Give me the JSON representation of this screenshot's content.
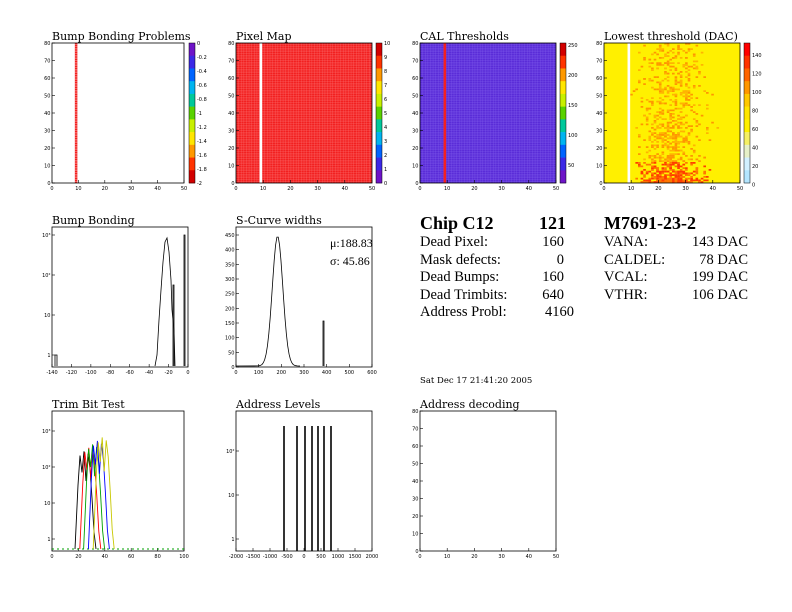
{
  "panel_titles": {
    "bump_problems": "Bump Bonding Problems",
    "pixel_map": "Pixel Map",
    "cal_thresholds": "CAL Thresholds",
    "lowest_threshold": "Lowest threshold (DAC)",
    "bump_bonding": "Bump Bonding",
    "scurve": "S-Curve widths",
    "trim_bit": "Trim Bit Test",
    "address_levels": "Address Levels",
    "address_decoding": "Address decoding"
  },
  "chip": {
    "name": "Chip C12",
    "number": "121",
    "rows": [
      {
        "label": "Dead Pixel:",
        "value": "160"
      },
      {
        "label": "Mask defects:",
        "value": "0"
      },
      {
        "label": "Dead Bumps:",
        "value": "160"
      },
      {
        "label": "Dead Trimbits:",
        "value": "640"
      },
      {
        "label": "Address Probl:",
        "value": "4160"
      }
    ]
  },
  "module": {
    "name": "M7691-23-2",
    "rows": [
      {
        "label": "VANA:",
        "value": "143 DAC"
      },
      {
        "label": "CALDEL:",
        "value": "78 DAC"
      },
      {
        "label": "VCAL:",
        "value": "199 DAC"
      },
      {
        "label": "VTHR:",
        "value": "106 DAC"
      }
    ]
  },
  "timestamp": "Sat Dec 17 21:41:20 2005",
  "scurve_stats": {
    "mu": "μ:188.83",
    "sigma": "σ: 45.86"
  },
  "chart_data": [
    {
      "type": "heatmap",
      "title": "Bump Bonding Problems",
      "xlim": [
        0,
        52
      ],
      "ylim": [
        0,
        80
      ],
      "x_ticks": [
        "0",
        "10",
        "20",
        "30",
        "40",
        "50"
      ],
      "y_ticks": [
        "0",
        "10",
        "20",
        "30",
        "40",
        "50",
        "60",
        "70",
        "80"
      ],
      "z_ticks": [
        "0",
        "-0.2",
        "-0.4",
        "-0.6",
        "-0.8",
        "-1",
        "-1.2",
        "-1.4",
        "-1.6",
        "-1.8",
        "-2"
      ],
      "description_cells": {
        "dead_columns": [
          9
        ]
      },
      "colors": {
        "cell": "#f22020"
      }
    },
    {
      "type": "heatmap",
      "title": "Pixel Map",
      "xlim": [
        0,
        52
      ],
      "ylim": [
        0,
        80
      ],
      "x_ticks": [
        "0",
        "10",
        "20",
        "30",
        "40",
        "50"
      ],
      "y_ticks": [
        "0",
        "10",
        "20",
        "30",
        "40",
        "50",
        "60",
        "70",
        "80"
      ],
      "z_ticks": [
        "0",
        "1",
        "2",
        "3",
        "4",
        "5",
        "6",
        "7",
        "8",
        "9",
        "10"
      ],
      "empty_columns": [
        9
      ],
      "fill_value": 10,
      "colors": {
        "cell": "#f22020"
      }
    },
    {
      "type": "heatmap",
      "title": "CAL Thresholds",
      "xlim": [
        0,
        52
      ],
      "ylim": [
        0,
        80
      ],
      "x_ticks": [
        "0",
        "10",
        "20",
        "30",
        "40",
        "50"
      ],
      "y_ticks": [
        "0",
        "10",
        "20",
        "30",
        "40",
        "50",
        "60",
        "70",
        "80"
      ],
      "z_ticks": [
        "50",
        "100",
        "150",
        "200",
        "250"
      ],
      "high_columns": [
        9
      ],
      "colors": {
        "cell": "#5a2cd8",
        "high": "#f22020"
      }
    },
    {
      "type": "heatmap",
      "title": "Lowest threshold (DAC)",
      "xlim": [
        0,
        52
      ],
      "ylim": [
        0,
        80
      ],
      "x_ticks": [
        "0",
        "10",
        "20",
        "30",
        "40",
        "50"
      ],
      "y_ticks": [
        "0",
        "10",
        "20",
        "30",
        "40",
        "50",
        "60",
        "70",
        "80"
      ],
      "z_ticks": [
        "0",
        "20",
        "40",
        "60",
        "80",
        "100",
        "120",
        "140"
      ],
      "empty_columns": [
        9
      ],
      "colors": {
        "cell": "#fff000"
      }
    },
    {
      "type": "line",
      "title": "Bump Bonding",
      "log_y": true,
      "x_ticks": [
        "-140",
        "-120",
        "-100",
        "-80",
        "-60",
        "-40",
        "-20",
        "0"
      ],
      "y_ticks": [
        "1",
        "10",
        "10²",
        "10³"
      ]
    },
    {
      "type": "line",
      "title": "S-Curve widths",
      "x_ticks": [
        "0",
        "100",
        "200",
        "300",
        "400",
        "500",
        "600"
      ],
      "y_ticks": [
        "0",
        "50",
        "100",
        "150",
        "200",
        "250",
        "300",
        "350",
        "400",
        "450"
      ]
    },
    {
      "type": "line",
      "title": "Trim Bit Test",
      "log_y": true,
      "x_ticks": [
        "0",
        "20",
        "40",
        "60",
        "80",
        "100"
      ],
      "y_ticks": [
        "1",
        "10",
        "10²",
        "10³"
      ],
      "series_colors": [
        "#000000",
        "#ff0000",
        "#00a000",
        "#0000ff",
        "#c8c800"
      ]
    },
    {
      "type": "line",
      "title": "Address Levels",
      "log_y": true,
      "x_ticks": [
        "-2000",
        "-1500",
        "-1000",
        "-500",
        "0",
        "500",
        "1000",
        "1500",
        "2000"
      ],
      "y_ticks": [
        "1",
        "10",
        "10²"
      ]
    },
    {
      "type": "heatmap",
      "title": "Address decoding",
      "xlim": [
        0,
        52
      ],
      "ylim": [
        0,
        80
      ],
      "x_ticks": [
        "0",
        "10",
        "20",
        "30",
        "40",
        "50"
      ],
      "y_ticks": [
        "0",
        "10",
        "20",
        "30",
        "40",
        "50",
        "60",
        "70",
        "80"
      ]
    }
  ]
}
